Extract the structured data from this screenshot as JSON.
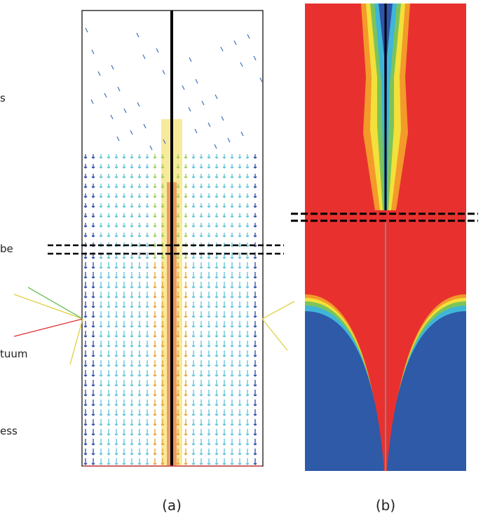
{
  "labels": [
    "s",
    "be",
    "tuum",
    "ess"
  ],
  "captions": [
    "(a)",
    "(b)"
  ]
}
